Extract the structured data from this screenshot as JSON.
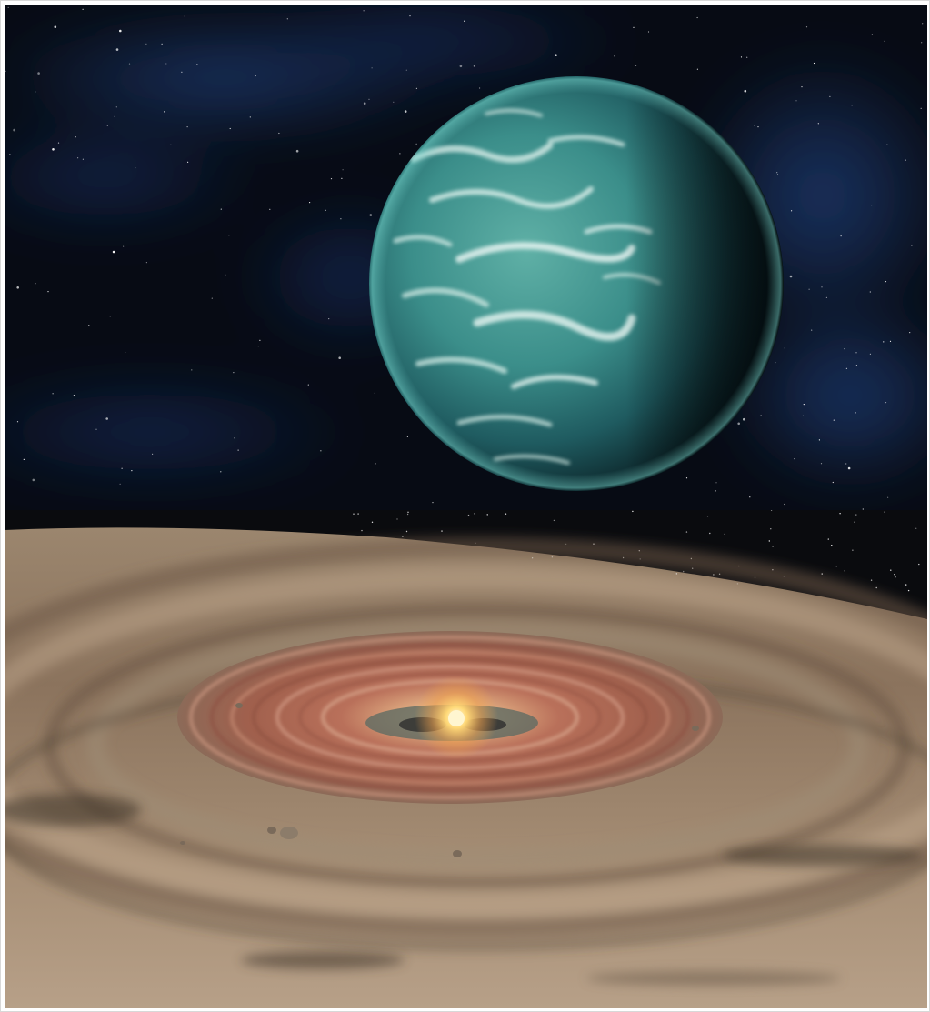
{
  "image": {
    "panels": [
      {
        "id": "exoplanet",
        "subject": "planet"
      },
      {
        "id": "protoplanetary-disk",
        "subject": "disk"
      }
    ],
    "colors": {
      "space": "#070b14",
      "nebula": "#1b3a78",
      "planet_ocean": "#3e8f8c",
      "planet_shadow": "#0c2226",
      "disk_dust": "#a8927a",
      "disk_ring": "#b06a52",
      "star_core": "#ffe7a0"
    }
  }
}
